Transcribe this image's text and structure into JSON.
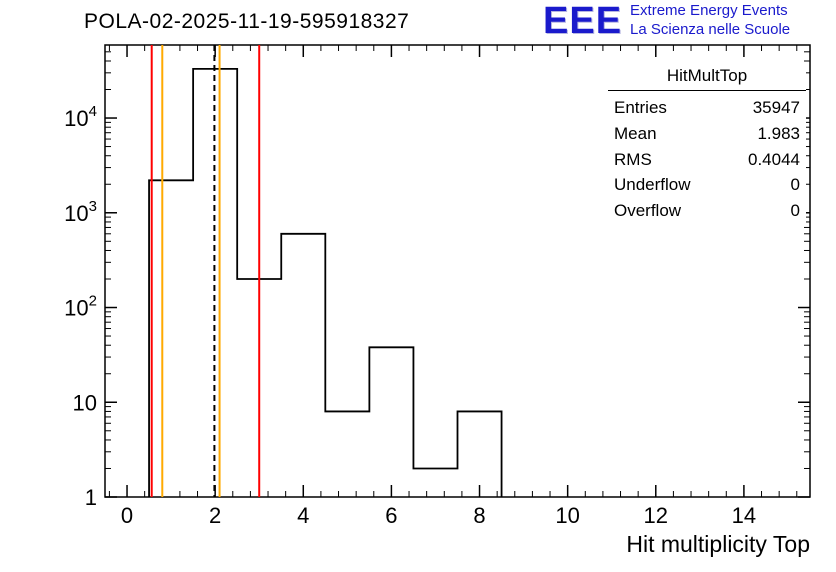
{
  "header": {
    "title": "POLA-02-2025-11-19-595918327",
    "logo": {
      "acronym": "EEE",
      "line1": "Extreme Energy Events",
      "line2": "La Scienza nelle Scuole",
      "color": "#1a1acc"
    }
  },
  "stats": {
    "title": "HitMultTop",
    "rows": [
      {
        "label": "Entries",
        "value": "35947"
      },
      {
        "label": "Mean",
        "value": "1.983"
      },
      {
        "label": "RMS",
        "value": "0.4044"
      },
      {
        "label": "Underflow",
        "value": "0"
      },
      {
        "label": "Overflow",
        "value": "0"
      }
    ]
  },
  "chart_data": {
    "type": "bar",
    "subtype": "step-histogram",
    "title": "POLA-02-2025-11-19-595918327",
    "xlabel": "Hit multiplicity Top",
    "ylabel": "",
    "x_range": [
      -0.5,
      15.5
    ],
    "y_scale": "log",
    "y_range": [
      1,
      59000
    ],
    "x_ticks": [
      0,
      2,
      4,
      6,
      8,
      10,
      12,
      14
    ],
    "y_ticks_decades": [
      0,
      1,
      2,
      3,
      4
    ],
    "y_tick_labels": [
      "1",
      "10",
      "10^2",
      "10^3",
      "10^4"
    ],
    "bin_edges": [
      0.5,
      1.5,
      2.5,
      3.5,
      4.5,
      5.5,
      6.5,
      7.5,
      8.5
    ],
    "counts": [
      2200,
      33000,
      200,
      600,
      8,
      38,
      2,
      8
    ],
    "line_color": "#000000",
    "vlines": [
      {
        "x": 0.56,
        "color": "#ff0000",
        "dash": false
      },
      {
        "x": 0.8,
        "color": "#ffaa00",
        "dash": false
      },
      {
        "x": 1.983,
        "color": "#000000",
        "dash": true
      },
      {
        "x": 2.1,
        "color": "#ffaa00",
        "dash": false
      },
      {
        "x": 3.0,
        "color": "#ff0000",
        "dash": false
      }
    ],
    "grid": false,
    "legend": "none"
  }
}
